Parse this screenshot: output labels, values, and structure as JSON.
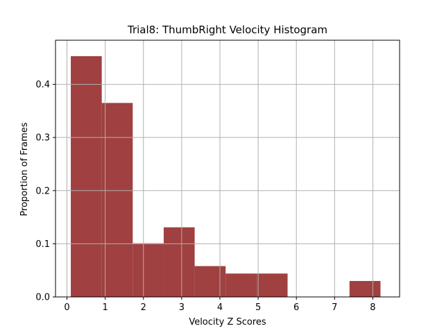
{
  "chart_data": {
    "type": "bar",
    "title": "Trial8: ThumbRight Velocity Histogram",
    "xlabel": "Velocity Z Scores",
    "ylabel": "Proportion of Frames",
    "xlim": [
      -0.3,
      8.7
    ],
    "ylim": [
      0,
      0.483
    ],
    "xticks": [
      0,
      1,
      2,
      3,
      4,
      5,
      6,
      7,
      8
    ],
    "xtick_labels": [
      "0",
      "1",
      "2",
      "3",
      "4",
      "5",
      "6",
      "7",
      "8"
    ],
    "yticks": [
      0.0,
      0.1,
      0.2,
      0.3,
      0.4
    ],
    "ytick_labels": [
      "0.0",
      "0.1",
      "0.2",
      "0.3",
      "0.4"
    ],
    "grid": true,
    "bar_color": "#a04040",
    "bins": [
      {
        "x0": 0.1,
        "x1": 0.91,
        "value": 0.453
      },
      {
        "x0": 0.91,
        "x1": 1.72,
        "value": 0.365
      },
      {
        "x0": 1.72,
        "x1": 2.53,
        "value": 0.101
      },
      {
        "x0": 2.53,
        "x1": 3.34,
        "value": 0.131
      },
      {
        "x0": 3.34,
        "x1": 4.15,
        "value": 0.058
      },
      {
        "x0": 4.15,
        "x1": 4.96,
        "value": 0.044
      },
      {
        "x0": 4.96,
        "x1": 5.77,
        "value": 0.044
      },
      {
        "x0": 5.77,
        "x1": 6.58,
        "value": 0
      },
      {
        "x0": 6.58,
        "x1": 7.39,
        "value": 0
      },
      {
        "x0": 7.39,
        "x1": 8.2,
        "value": 0.03
      }
    ]
  }
}
